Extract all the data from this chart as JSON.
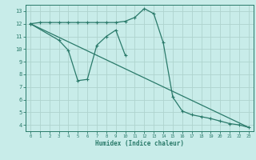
{
  "xlabel": "Humidex (Indice chaleur)",
  "bg_color": "#c8ece9",
  "grid_color": "#aed4ce",
  "line_color": "#2a7a6a",
  "xlim": [
    -0.5,
    23.5
  ],
  "ylim": [
    3.5,
    13.5
  ],
  "xticks": [
    0,
    1,
    2,
    3,
    4,
    5,
    6,
    7,
    8,
    9,
    10,
    11,
    12,
    13,
    14,
    15,
    16,
    17,
    18,
    19,
    20,
    21,
    22,
    23
  ],
  "yticks": [
    4,
    5,
    6,
    7,
    8,
    9,
    10,
    11,
    12,
    13
  ],
  "line1_x": [
    0,
    1,
    2,
    3,
    4,
    5,
    6,
    7,
    8,
    9,
    10,
    11,
    12,
    13,
    14,
    15,
    16,
    17,
    18,
    19,
    20,
    21,
    22,
    23
  ],
  "line1_y": [
    12.0,
    12.1,
    12.1,
    12.1,
    12.1,
    12.1,
    12.1,
    12.1,
    12.1,
    12.1,
    12.2,
    12.5,
    13.2,
    12.8,
    10.5,
    6.2,
    5.1,
    4.8,
    4.65,
    4.5,
    4.3,
    4.1,
    4.0,
    3.8
  ],
  "line2_x": [
    0,
    3,
    4,
    5,
    6,
    7,
    8,
    9,
    10
  ],
  "line2_y": [
    12.0,
    10.7,
    9.9,
    7.5,
    7.6,
    10.3,
    11.0,
    11.5,
    9.5
  ],
  "line3_x": [
    0,
    23
  ],
  "line3_y": [
    12.0,
    3.8
  ]
}
